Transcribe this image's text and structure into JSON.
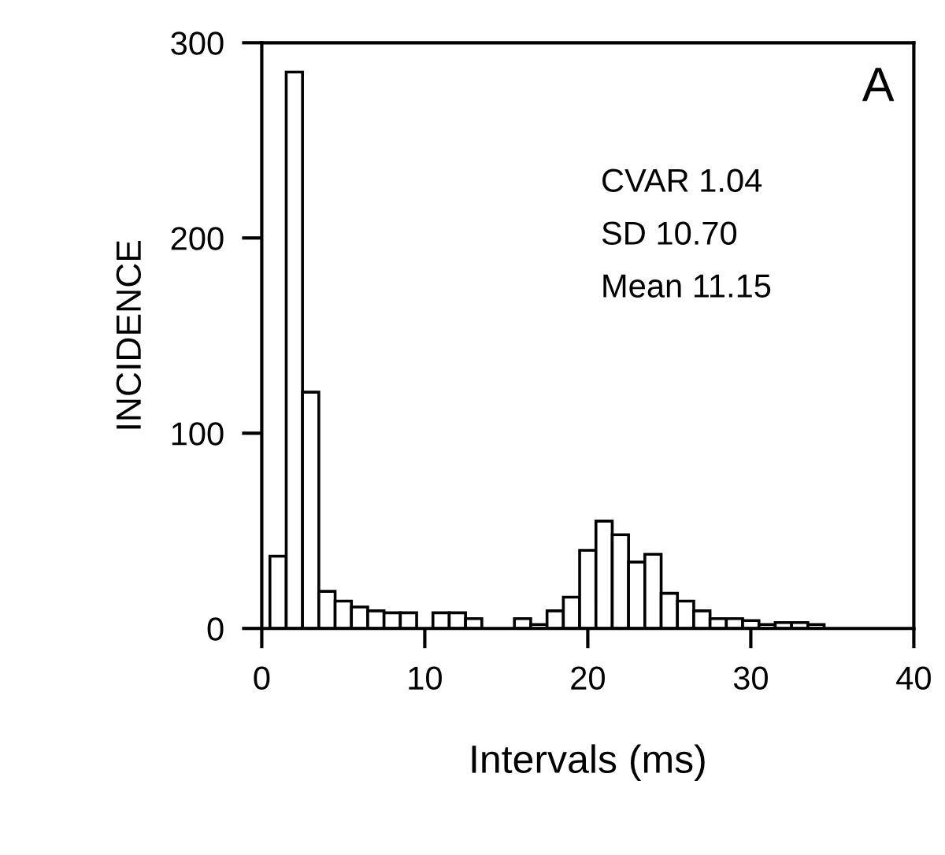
{
  "chart_data": {
    "type": "histogram",
    "xlabel": "Intervals (ms)",
    "ylabel": "INCIDENCE",
    "annotations": [
      "A",
      "CVAR 1.04",
      "SD 10.70",
      "Mean 11.15"
    ],
    "bins": [
      0.5,
      1.5,
      2.5,
      3.5,
      4.5,
      5.5,
      6.5,
      7.5,
      8.5,
      9.5,
      10.5,
      11.5,
      12.5,
      13.5,
      14.5,
      15.5,
      16.5,
      17.5,
      18.5,
      19.5,
      20.5,
      21.5,
      22.5,
      23.5,
      24.5,
      25.5,
      26.5,
      27.5,
      28.5,
      29.5,
      30.5,
      31.5,
      32.5,
      33.5,
      34.5
    ],
    "values": [
      37,
      285,
      121,
      19,
      14,
      11,
      9,
      8,
      8,
      0,
      8,
      8,
      5,
      0,
      0,
      5,
      2,
      9,
      16,
      40,
      55,
      48,
      34,
      38,
      18,
      14,
      9,
      5,
      5,
      4,
      2,
      3,
      3,
      2
    ],
    "color": "#ffffff",
    "xlim": [
      0,
      40
    ],
    "ylim": [
      0,
      300
    ],
    "xticks": [
      0,
      10,
      20,
      30,
      40
    ],
    "yticks": [
      0,
      100,
      200,
      300
    ],
    "grid": false,
    "legend": false
  }
}
